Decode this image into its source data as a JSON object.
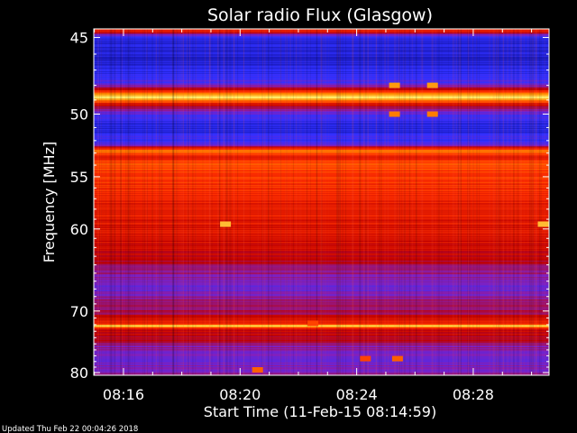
{
  "chart_data": {
    "type": "heatmap",
    "title": "Solar radio Flux (Glasgow)",
    "xlabel": "Start Time (11-Feb-15 08:14:59)",
    "ylabel": "Frequency [MHz]",
    "footer": "Updated Thu Feb 22 00:04:26 2018",
    "x_range_minutes": [
      14.98,
      30.6
    ],
    "y_range_mhz": [
      44.5,
      80.5
    ],
    "x_ticks": [
      {
        "label": "08:16",
        "value": 16
      },
      {
        "label": "08:20",
        "value": 20
      },
      {
        "label": "08:24",
        "value": 24
      },
      {
        "label": "08:28",
        "value": 28
      }
    ],
    "y_ticks": [
      {
        "label": "45",
        "value": 45
      },
      {
        "label": "50",
        "value": 50
      },
      {
        "label": "55",
        "value": 55
      },
      {
        "label": "60",
        "value": 60
      },
      {
        "label": "70",
        "value": 70
      },
      {
        "label": "80",
        "value": 80
      }
    ],
    "colormap": [
      "#1010a0",
      "#3030ff",
      "#8020c0",
      "#c00000",
      "#ff3000",
      "#ff9000",
      "#ffff80"
    ],
    "frequency_profile": [
      {
        "f": 44.6,
        "level": 0.62
      },
      {
        "f": 45.0,
        "level": 0.12
      },
      {
        "f": 46.5,
        "level": 0.08
      },
      {
        "f": 47.8,
        "level": 0.22
      },
      {
        "f": 48.3,
        "level": 0.55
      },
      {
        "f": 48.8,
        "level": 1.0
      },
      {
        "f": 49.3,
        "level": 0.55
      },
      {
        "f": 50.0,
        "level": 0.22
      },
      {
        "f": 51.0,
        "level": 0.1
      },
      {
        "f": 52.3,
        "level": 0.22
      },
      {
        "f": 52.8,
        "level": 0.82
      },
      {
        "f": 53.3,
        "level": 0.6
      },
      {
        "f": 54.0,
        "level": 0.72
      },
      {
        "f": 55.5,
        "level": 0.66
      },
      {
        "f": 58.0,
        "level": 0.6
      },
      {
        "f": 61.0,
        "level": 0.55
      },
      {
        "f": 63.0,
        "level": 0.5
      },
      {
        "f": 65.0,
        "level": 0.38
      },
      {
        "f": 67.0,
        "level": 0.28
      },
      {
        "f": 68.5,
        "level": 0.38
      },
      {
        "f": 70.5,
        "level": 0.46
      },
      {
        "f": 71.8,
        "level": 0.6
      },
      {
        "f": 72.2,
        "level": 0.97
      },
      {
        "f": 72.6,
        "level": 0.55
      },
      {
        "f": 74.0,
        "level": 0.48
      },
      {
        "f": 76.0,
        "level": 0.34
      },
      {
        "f": 78.0,
        "level": 0.3
      },
      {
        "f": 80.5,
        "level": 0.36
      }
    ],
    "bright_spots": [
      {
        "t": 19.5,
        "f": 59.5,
        "level": 0.9
      },
      {
        "t": 30.4,
        "f": 59.5,
        "level": 0.9
      },
      {
        "t": 25.3,
        "f": 48.0,
        "level": 0.85
      },
      {
        "t": 26.6,
        "f": 48.0,
        "level": 0.85
      },
      {
        "t": 25.3,
        "f": 50.0,
        "level": 0.8
      },
      {
        "t": 26.6,
        "f": 50.0,
        "level": 0.8
      },
      {
        "t": 20.6,
        "f": 79.5,
        "level": 0.75
      },
      {
        "t": 25.4,
        "f": 77.5,
        "level": 0.75
      },
      {
        "t": 24.3,
        "f": 77.5,
        "level": 0.7
      },
      {
        "t": 22.5,
        "f": 71.8,
        "level": 0.7
      }
    ]
  }
}
